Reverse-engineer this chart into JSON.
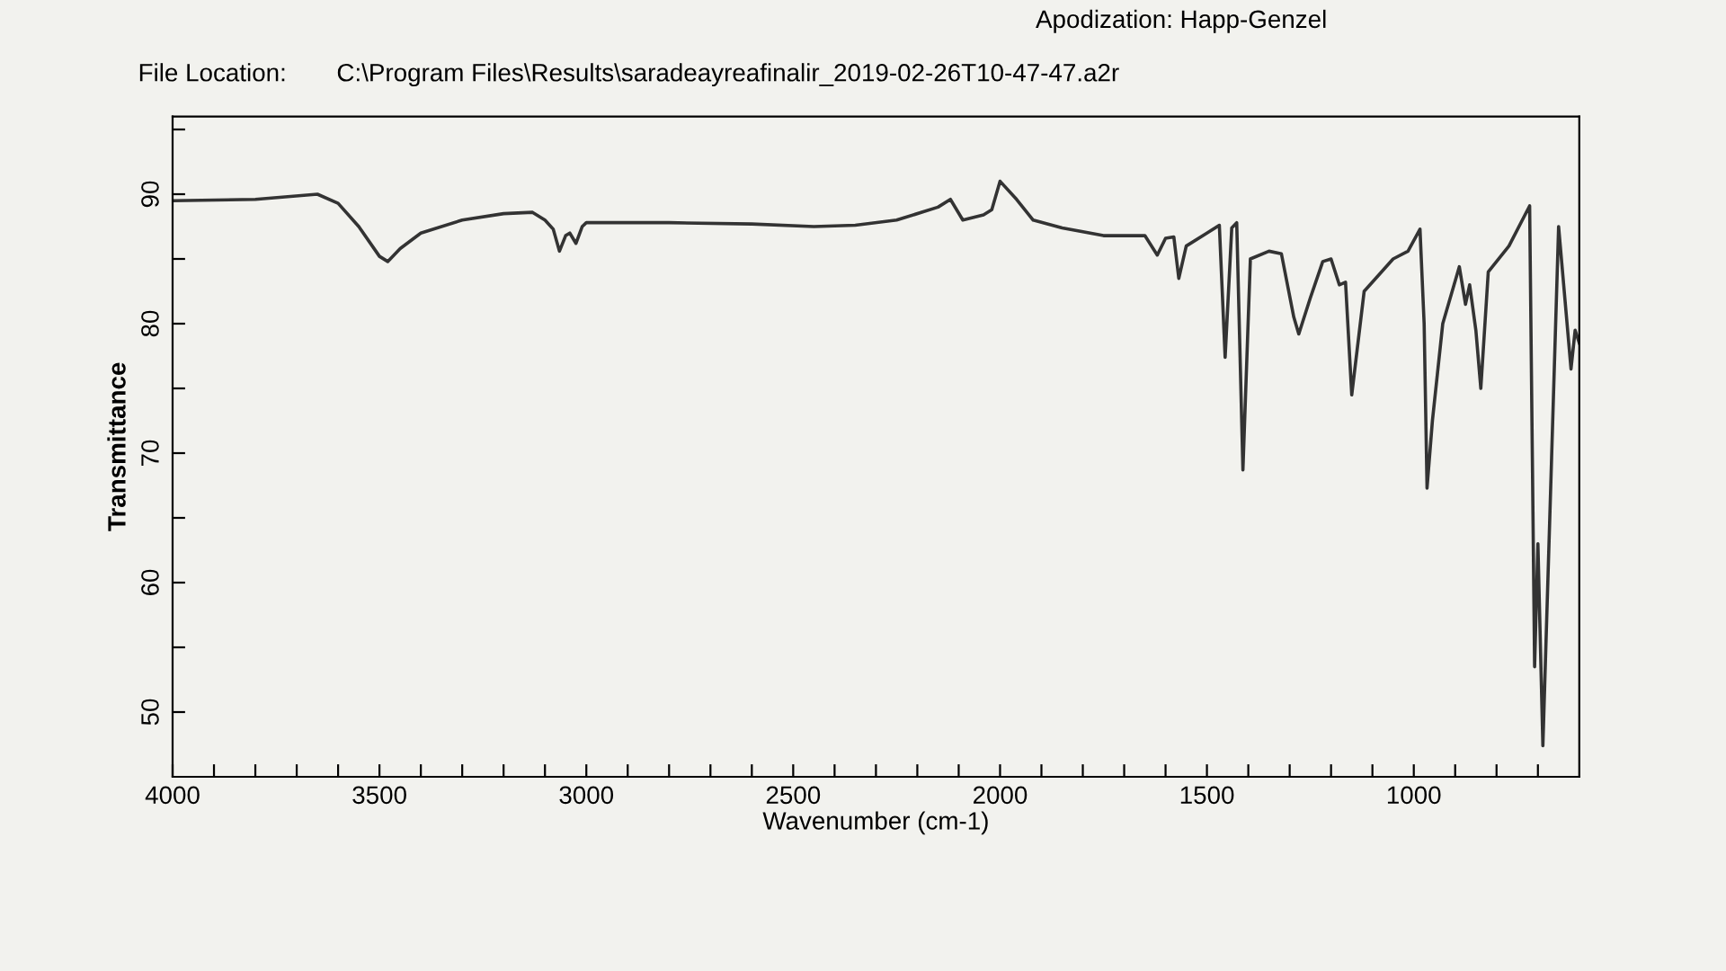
{
  "chart_data": {
    "type": "line",
    "xlabel": "Wavenumber (cm-1)",
    "ylabel": "Transmittance",
    "annotations": [
      "File Location:",
      "C:\\Program Files\\Results\\saradeayreafinalir_2019-02-26T10-47-47.a2r",
      "Apodization: Happ-Genzel"
    ],
    "xlim": [
      4000,
      600
    ],
    "ylim": [
      45,
      96
    ],
    "xticks": [
      4000,
      {
        "value": 3900,
        "label": null
      },
      {
        "value": 3800,
        "label": null
      },
      {
        "value": 3700,
        "label": null
      },
      {
        "value": 3600,
        "label": null
      },
      3500,
      {
        "value": 3400,
        "label": null
      },
      {
        "value": 3300,
        "label": null
      },
      {
        "value": 3200,
        "label": null
      },
      {
        "value": 3100,
        "label": null
      },
      3000,
      {
        "value": 2900,
        "label": null
      },
      {
        "value": 2800,
        "label": null
      },
      {
        "value": 2700,
        "label": null
      },
      {
        "value": 2600,
        "label": null
      },
      2500,
      {
        "value": 2400,
        "label": null
      },
      {
        "value": 2300,
        "label": null
      },
      {
        "value": 2200,
        "label": null
      },
      {
        "value": 2100,
        "label": null
      },
      2000,
      {
        "value": 1900,
        "label": null
      },
      {
        "value": 1800,
        "label": null
      },
      {
        "value": 1700,
        "label": null
      },
      {
        "value": 1600,
        "label": null
      },
      1500,
      {
        "value": 1400,
        "label": null
      },
      {
        "value": 1300,
        "label": null
      },
      {
        "value": 1200,
        "label": null
      },
      {
        "value": 1100,
        "label": null
      },
      1000,
      {
        "value": 900,
        "label": null
      },
      {
        "value": 800,
        "label": null
      },
      {
        "value": 700,
        "label": null
      }
    ],
    "yticks": [
      50,
      {
        "value": 55,
        "label": null
      },
      60,
      {
        "value": 65,
        "label": null
      },
      70,
      {
        "value": 75,
        "label": null
      },
      80,
      {
        "value": 85,
        "label": null
      },
      90,
      {
        "value": 95,
        "label": null
      }
    ],
    "grid": false,
    "marker": "none",
    "line_style": "solid",
    "series": [
      {
        "color": "#333333",
        "x": [
          4000,
          3800,
          3650,
          3600,
          3550,
          3500,
          3480,
          3450,
          3400,
          3300,
          3200,
          3130,
          3100,
          3080,
          3065,
          3050,
          3040,
          3025,
          3010,
          3000,
          2800,
          2600,
          2450,
          2350,
          2250,
          2150,
          2120,
          2090,
          2040,
          2020,
          2000,
          1960,
          1920,
          1850,
          1750,
          1650,
          1620,
          1600,
          1580,
          1568,
          1550,
          1500,
          1470,
          1456,
          1440,
          1428,
          1413,
          1395,
          1350,
          1320,
          1290,
          1278,
          1250,
          1220,
          1200,
          1180,
          1165,
          1150,
          1120,
          1050,
          1014,
          985,
          975,
          968,
          955,
          930,
          890,
          875,
          865,
          850,
          838,
          820,
          770,
          720,
          708,
          700,
          688,
          650,
          620,
          610,
          600
        ],
        "values": [
          89.5,
          89.6,
          90.0,
          89.3,
          87.5,
          85.2,
          84.8,
          85.8,
          87.0,
          88.0,
          88.5,
          88.6,
          88.0,
          87.3,
          85.6,
          86.8,
          87.0,
          86.2,
          87.5,
          87.8,
          87.8,
          87.7,
          87.5,
          87.6,
          88.0,
          89.0,
          89.6,
          88.0,
          88.4,
          88.8,
          91.0,
          89.6,
          88.0,
          87.4,
          86.8,
          86.8,
          85.3,
          86.6,
          86.7,
          83.5,
          86.0,
          87.0,
          87.6,
          77.4,
          87.4,
          87.8,
          68.7,
          85.0,
          85.6,
          85.4,
          80.5,
          79.2,
          82.0,
          84.8,
          85.0,
          83.0,
          83.2,
          74.5,
          82.5,
          85.0,
          85.6,
          87.3,
          80.0,
          67.3,
          72.5,
          80.0,
          84.4,
          81.5,
          83.0,
          79.5,
          75.0,
          84.0,
          86.0,
          89.1,
          53.5,
          63.0,
          47.4,
          87.5,
          76.5,
          79.5,
          78.5
        ]
      }
    ]
  }
}
